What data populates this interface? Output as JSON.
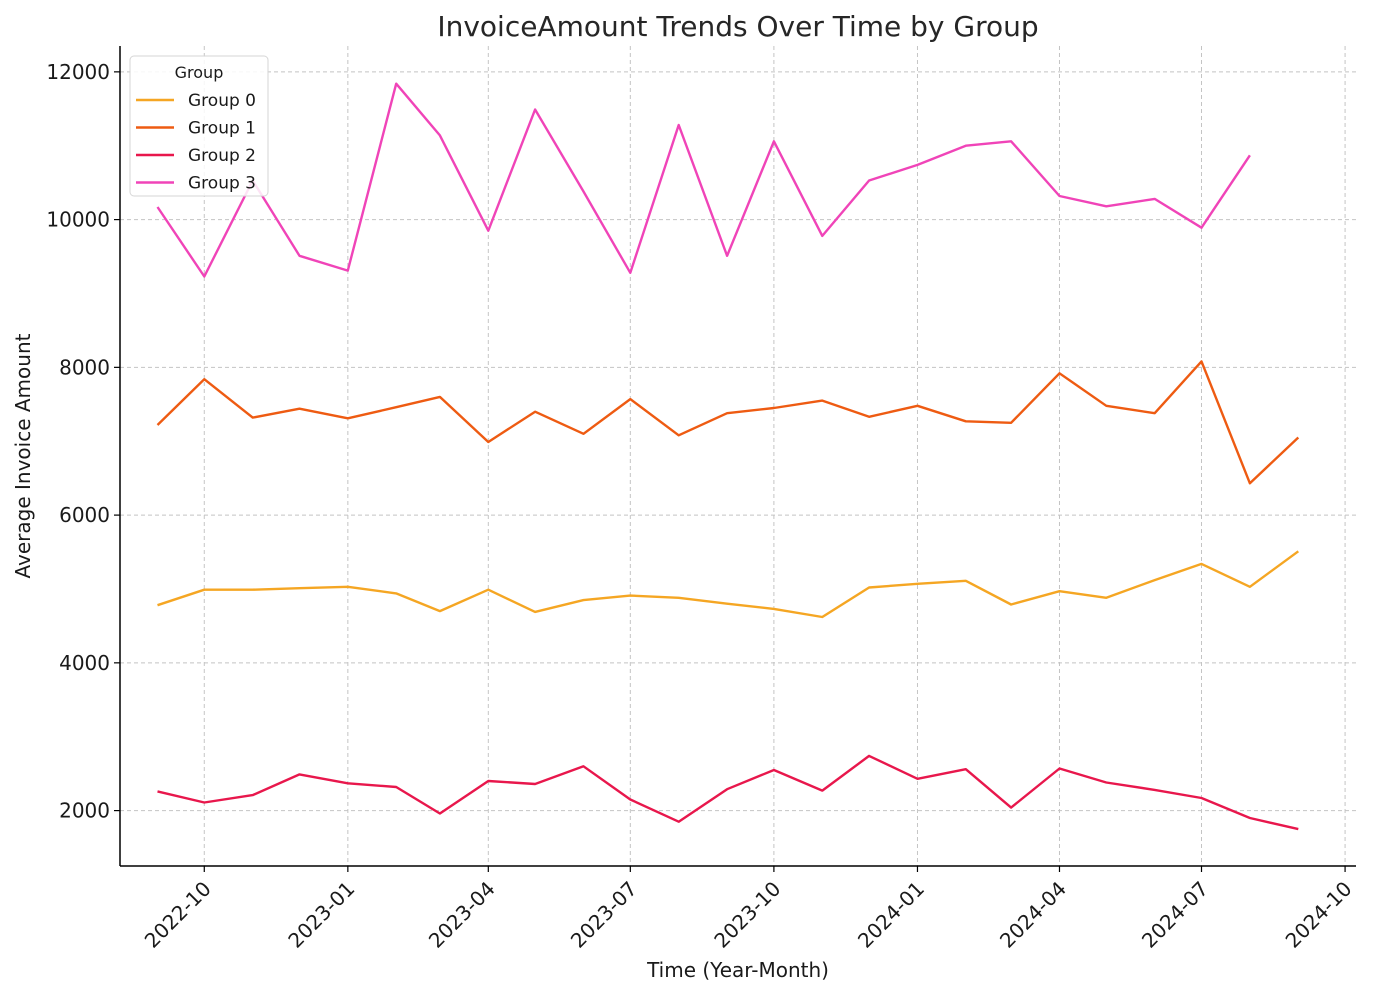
{
  "chart_data": {
    "type": "line",
    "title": "InvoiceAmount Trends Over Time by Group",
    "xlabel": "Time (Year-Month)",
    "ylabel": "Average Invoice Amount",
    "ylim": [
      1250,
      12350
    ],
    "xlim": [
      "2022-08-08",
      "2024-10-08"
    ],
    "grid": true,
    "legend": {
      "title": "Group",
      "placement": "top-left"
    },
    "y_ticks": [
      2000,
      4000,
      6000,
      8000,
      10000,
      12000
    ],
    "x_ticks": [
      "2022-10",
      "2023-01",
      "2023-04",
      "2023-07",
      "2023-10",
      "2024-01",
      "2024-04",
      "2024-07",
      "2024-10"
    ],
    "x": [
      "2022-09",
      "2022-10",
      "2022-11",
      "2022-12",
      "2023-01",
      "2023-02",
      "2023-03",
      "2023-04",
      "2023-05",
      "2023-06",
      "2023-07",
      "2023-08",
      "2023-09",
      "2023-10",
      "2023-11",
      "2023-12",
      "2024-01",
      "2024-02",
      "2024-03",
      "2024-04",
      "2024-05",
      "2024-06",
      "2024-07",
      "2024-08",
      "2024-09"
    ],
    "series": [
      {
        "name": "Group 0",
        "color": "#f5a623",
        "values": [
          4780,
          4990,
          4990,
          5010,
          5030,
          4940,
          4700,
          4990,
          4690,
          4850,
          4910,
          4880,
          4800,
          4730,
          4620,
          5020,
          5070,
          5110,
          4790,
          4970,
          4880,
          5120,
          5340,
          5030,
          5510
        ]
      },
      {
        "name": "Group 1",
        "color": "#ee5b12",
        "values": [
          7220,
          7840,
          7320,
          7440,
          7310,
          7460,
          7600,
          6990,
          7400,
          7100,
          7570,
          7080,
          7380,
          7450,
          7550,
          7330,
          7480,
          7270,
          7250,
          7920,
          7480,
          7380,
          8080,
          6430,
          7050
        ]
      },
      {
        "name": "Group 2",
        "color": "#e8174c",
        "values": [
          2260,
          2110,
          2210,
          2490,
          2370,
          2320,
          1960,
          2400,
          2360,
          2600,
          2150,
          1850,
          2290,
          2550,
          2270,
          2740,
          2430,
          2560,
          2040,
          2570,
          2380,
          2280,
          2170,
          1900,
          1750
        ]
      },
      {
        "name": "Group 3",
        "color": "#f044b8",
        "values": [
          10170,
          9230,
          10530,
          9510,
          9310,
          11840,
          11140,
          9850,
          11490,
          10380,
          9280,
          11280,
          9510,
          11060,
          9780,
          10530,
          10740,
          11000,
          11060,
          10320,
          10180,
          10280,
          9890,
          10870,
          null
        ]
      }
    ]
  }
}
